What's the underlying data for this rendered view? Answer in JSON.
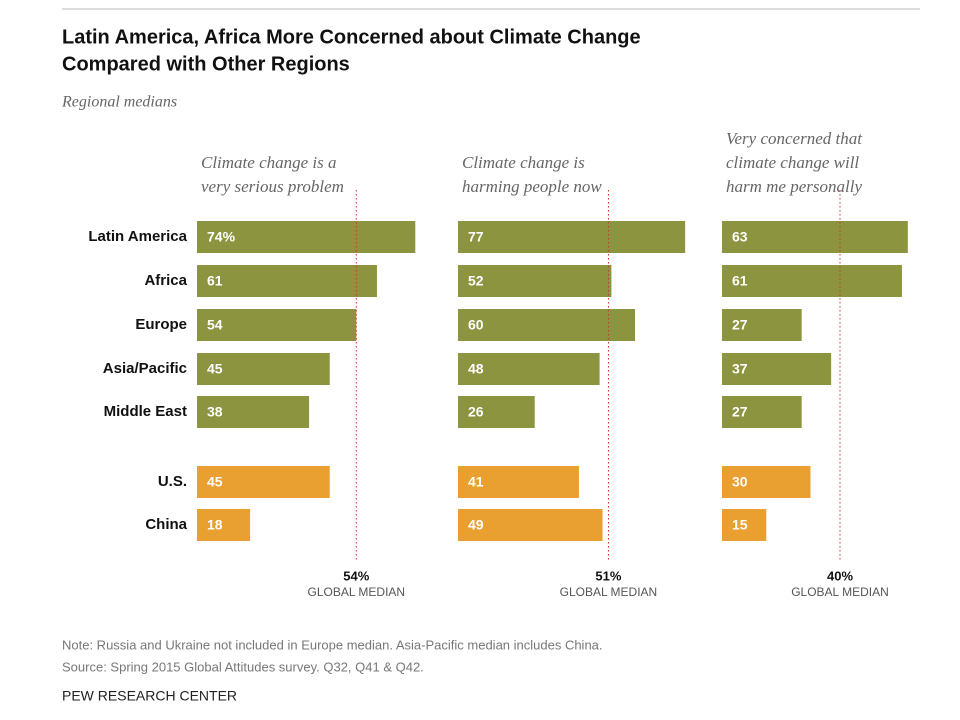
{
  "title": [
    "Latin America, Africa More Concerned about Climate Change",
    "Compared with Other Regions"
  ],
  "subtitle": "Regional medians",
  "note": "Note: Russia and Ukraine not included in Europe median. Asia-Pacific median includes China.",
  "source": "Source: Spring 2015 Global Attitudes survey. Q32, Q41 & Q42.",
  "footer": "PEW RESEARCH CENTER",
  "chart_data": {
    "type": "bar",
    "categories": [
      "Latin America",
      "Africa",
      "Europe",
      "Asia/Pacific",
      "Middle East",
      "U.S.",
      "China"
    ],
    "colors": [
      "#8c9440",
      "#8c9440",
      "#8c9440",
      "#8c9440",
      "#8c9440",
      "#eaa030",
      "#eaa030"
    ],
    "panels": [
      {
        "title": [
          "Climate change is a",
          "very serious problem"
        ],
        "values": [
          74,
          61,
          54,
          45,
          38,
          45,
          18
        ],
        "value_labels": [
          "74%",
          "61",
          "54",
          "45",
          "38",
          "45",
          "18"
        ],
        "median": {
          "value": 54,
          "label": "54%"
        },
        "median_caption": "GLOBAL MEDIAN"
      },
      {
        "title": [
          "Climate change is",
          "harming people now"
        ],
        "values": [
          77,
          52,
          60,
          48,
          26,
          41,
          49
        ],
        "median": {
          "value": 51,
          "label": "51%"
        },
        "median_caption": "GLOBAL MEDIAN"
      },
      {
        "title": [
          "Very concerned that",
          "climate change will",
          "harm me personally"
        ],
        "values": [
          63,
          61,
          27,
          37,
          27,
          30,
          15
        ],
        "median": {
          "value": 40,
          "label": "40%"
        },
        "median_caption": "GLOBAL MEDIAN"
      }
    ]
  }
}
